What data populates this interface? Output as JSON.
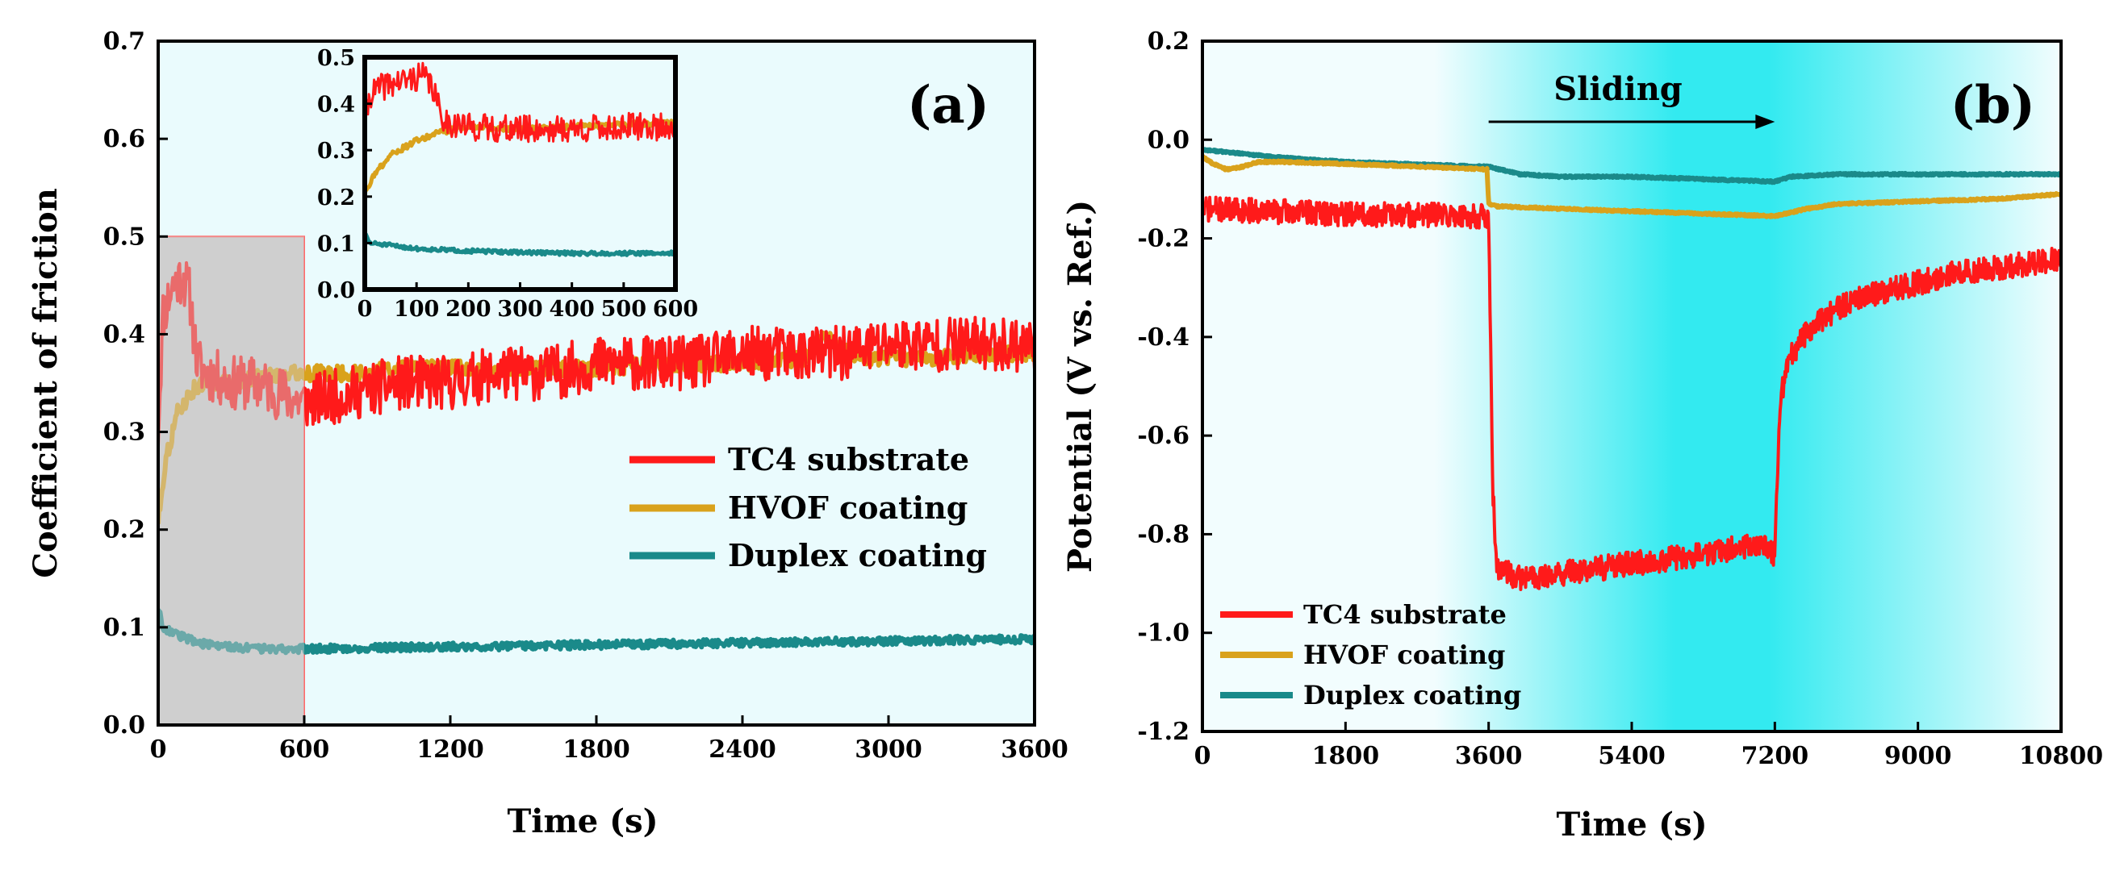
{
  "colors": {
    "tc4": "#ff1a1a",
    "hvof": "#d9a21c",
    "duplex": "#1a8a8a",
    "panel_a_bg": "#eafbfd",
    "panel_b_edge": "#f2fdfe",
    "panel_b_center": "#33eaf0",
    "shade_fill": "#cfcfcf",
    "shade_stroke": "#ff6a6a"
  },
  "chart_data": [
    {
      "panel": "a",
      "type": "line",
      "panel_label": "(a)",
      "xlabel": "Time (s)",
      "ylabel": "Coefficient of friction",
      "xlim": [
        0,
        3600
      ],
      "ylim": [
        0,
        0.7
      ],
      "xticks": [
        0,
        600,
        1200,
        1800,
        2400,
        3000,
        3600
      ],
      "xtick_labels": [
        "0",
        "600",
        "1200",
        "1800",
        "2400",
        "3000",
        "3600"
      ],
      "yticks": [
        0,
        0.1,
        0.2,
        0.3,
        0.4,
        0.5,
        0.6,
        0.7
      ],
      "ytick_labels": [
        "0.0",
        "0.1",
        "0.2",
        "0.3",
        "0.4",
        "0.5",
        "0.6",
        "0.7"
      ],
      "highlight_region": {
        "x": [
          0,
          600
        ],
        "y": [
          0,
          0.5
        ]
      },
      "legend_position": "center-right",
      "series": [
        {
          "name": "TC4 substrate",
          "color_key": "tc4",
          "x": [
            0,
            20,
            60,
            100,
            130,
            160,
            200,
            300,
            400,
            500,
            600,
            800,
            1000,
            1200,
            1400,
            1600,
            1800,
            2000,
            2200,
            2400,
            2600,
            2800,
            3000,
            3200,
            3400,
            3600
          ],
          "y": [
            0.3,
            0.42,
            0.45,
            0.46,
            0.44,
            0.37,
            0.36,
            0.35,
            0.35,
            0.34,
            0.33,
            0.34,
            0.35,
            0.35,
            0.36,
            0.36,
            0.37,
            0.37,
            0.37,
            0.38,
            0.38,
            0.38,
            0.39,
            0.39,
            0.39,
            0.39
          ],
          "noise": 0.028
        },
        {
          "name": "HVOF coating",
          "color_key": "hvof",
          "x": [
            0,
            30,
            80,
            150,
            200,
            300,
            400,
            500,
            600,
            800,
            1000,
            1200,
            1500,
            1800,
            2100,
            2400,
            2650,
            2750,
            2800,
            2900,
            3000,
            3200,
            3400,
            3600
          ],
          "y": [
            0.21,
            0.27,
            0.32,
            0.345,
            0.35,
            0.35,
            0.355,
            0.36,
            0.36,
            0.36,
            0.365,
            0.365,
            0.365,
            0.365,
            0.37,
            0.37,
            0.375,
            0.4,
            0.385,
            0.375,
            0.375,
            0.375,
            0.38,
            0.38
          ],
          "noise": 0.008
        },
        {
          "name": "Duplex coating",
          "color_key": "duplex",
          "x": [
            0,
            20,
            100,
            200,
            400,
            600,
            900,
            1200,
            1800,
            2400,
            3000,
            3600
          ],
          "y": [
            0.12,
            0.1,
            0.09,
            0.082,
            0.078,
            0.078,
            0.079,
            0.08,
            0.082,
            0.084,
            0.086,
            0.088
          ],
          "noise": 0.004
        }
      ],
      "inset": {
        "type": "line",
        "xlim": [
          0,
          600
        ],
        "ylim": [
          0,
          0.5
        ],
        "xticks": [
          0,
          100,
          200,
          300,
          400,
          500,
          600
        ],
        "xtick_labels": [
          "0",
          "100",
          "200",
          "300",
          "400",
          "500",
          "600"
        ],
        "yticks": [
          0,
          0.1,
          0.2,
          0.3,
          0.4,
          0.5
        ],
        "ytick_labels": [
          "0.0",
          "0.1",
          "0.2",
          "0.3",
          "0.4",
          "0.5"
        ],
        "series": [
          {
            "name": "TC4 substrate",
            "color_key": "tc4",
            "x": [
              0,
              10,
              40,
              80,
              110,
              130,
              145,
              160,
              200,
              300,
              400,
              500,
              600
            ],
            "y": [
              0.36,
              0.42,
              0.44,
              0.45,
              0.46,
              0.44,
              0.38,
              0.36,
              0.35,
              0.345,
              0.345,
              0.35,
              0.35
            ],
            "noise": 0.03
          },
          {
            "name": "HVOF coating",
            "color_key": "hvof",
            "x": [
              0,
              20,
              50,
              100,
              150,
              200,
              300,
              400,
              500,
              600
            ],
            "y": [
              0.21,
              0.25,
              0.29,
              0.32,
              0.34,
              0.35,
              0.345,
              0.35,
              0.355,
              0.36
            ],
            "noise": 0.006
          },
          {
            "name": "Duplex coating",
            "color_key": "duplex",
            "x": [
              0,
              10,
              50,
              100,
              200,
              300,
              400,
              500,
              600
            ],
            "y": [
              0.12,
              0.1,
              0.095,
              0.088,
              0.083,
              0.08,
              0.078,
              0.078,
              0.078
            ],
            "noise": 0.004
          }
        ]
      }
    },
    {
      "panel": "b",
      "type": "line",
      "panel_label": "(b)",
      "xlabel": "Time (s)",
      "ylabel": "Potential (V vs. Ref.)",
      "xlim": [
        0,
        10800
      ],
      "ylim": [
        -1.2,
        0.2
      ],
      "xticks": [
        0,
        1800,
        3600,
        5400,
        7200,
        9000,
        10800
      ],
      "xtick_labels": [
        "0",
        "1800",
        "3600",
        "5400",
        "7200",
        "9000",
        "10800"
      ],
      "yticks": [
        -1.2,
        -1.0,
        -0.8,
        -0.6,
        -0.4,
        -0.2,
        0.0,
        0.2
      ],
      "ytick_labels": [
        "-1.2",
        "-1.0",
        "-0.8",
        "-0.6",
        "-0.4",
        "-0.2",
        "0.0",
        "0.2"
      ],
      "annotation": {
        "text": "Sliding",
        "arrow_from_x": 3600,
        "arrow_to_x": 7200
      },
      "legend_position": "bottom-left",
      "series": [
        {
          "name": "TC4 substrate",
          "color_key": "tc4",
          "x": [
            0,
            1800,
            3580,
            3600,
            3650,
            3700,
            4000,
            4500,
            5400,
            6300,
            7000,
            7200,
            7250,
            7300,
            7400,
            7600,
            8000,
            8500,
            9000,
            9500,
            10000,
            10800
          ],
          "y": [
            -0.14,
            -0.15,
            -0.155,
            -0.16,
            -0.7,
            -0.87,
            -0.89,
            -0.88,
            -0.86,
            -0.84,
            -0.82,
            -0.84,
            -0.6,
            -0.5,
            -0.44,
            -0.39,
            -0.34,
            -0.31,
            -0.29,
            -0.27,
            -0.26,
            -0.24
          ],
          "noise": 0.025
        },
        {
          "name": "HVOF coating",
          "color_key": "hvof",
          "x": [
            0,
            150,
            300,
            500,
            700,
            1000,
            2000,
            3580,
            3600,
            3700,
            4500,
            5400,
            6300,
            7200,
            7600,
            8000,
            9000,
            10000,
            10800
          ],
          "y": [
            -0.035,
            -0.05,
            -0.06,
            -0.055,
            -0.045,
            -0.045,
            -0.05,
            -0.06,
            -0.13,
            -0.135,
            -0.14,
            -0.145,
            -0.15,
            -0.155,
            -0.14,
            -0.13,
            -0.125,
            -0.12,
            -0.11
          ],
          "noise": 0.002
        },
        {
          "name": "Duplex coating",
          "color_key": "duplex",
          "x": [
            0,
            900,
            1800,
            2700,
            3600,
            4000,
            4500,
            5400,
            6300,
            7200,
            7400,
            8000,
            9000,
            10000,
            10800
          ],
          "y": [
            -0.02,
            -0.035,
            -0.045,
            -0.05,
            -0.055,
            -0.07,
            -0.075,
            -0.075,
            -0.08,
            -0.085,
            -0.075,
            -0.07,
            -0.07,
            -0.07,
            -0.07
          ],
          "noise": 0.002
        }
      ]
    }
  ]
}
